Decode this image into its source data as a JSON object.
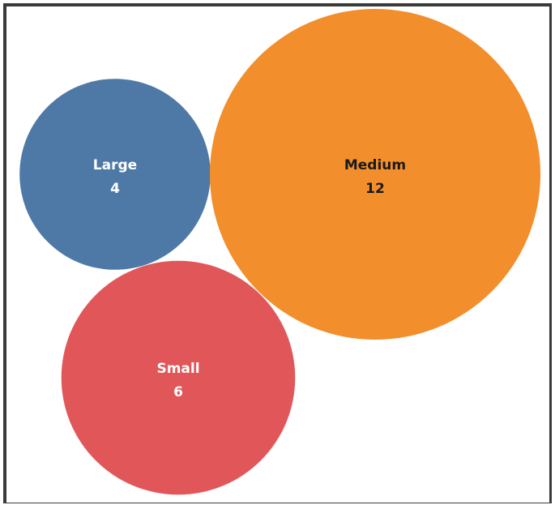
{
  "chart_data": {
    "type": "bubble",
    "title": "",
    "items": [
      {
        "label": "Large",
        "value": 4,
        "color": "#4e79a7",
        "text_color": "#ffffff"
      },
      {
        "label": "Medium",
        "value": 12,
        "color": "#f28e2b",
        "text_color": "#1a1a1a"
      },
      {
        "label": "Small",
        "value": 6,
        "color": "#e15759",
        "text_color": "#ffffff"
      }
    ]
  }
}
